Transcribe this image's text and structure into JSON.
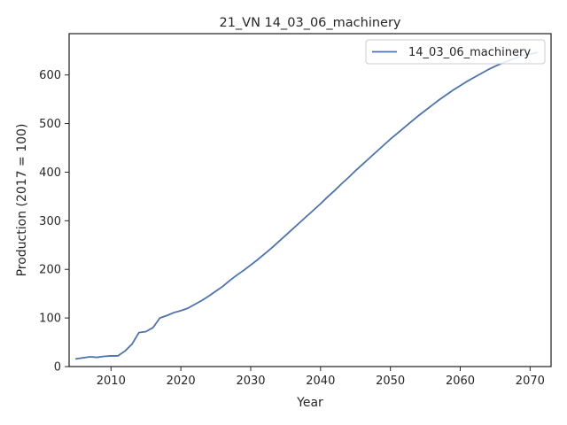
{
  "chart_data": {
    "type": "line",
    "title": "21_VN 14_03_06_machinery",
    "xlabel": "Year",
    "ylabel": "Production (2017 = 100)",
    "xlim": [
      2004,
      2073
    ],
    "ylim": [
      0,
      685
    ],
    "xticks": [
      2010,
      2020,
      2030,
      2040,
      2050,
      2060,
      2070
    ],
    "yticks": [
      0,
      100,
      200,
      300,
      400,
      500,
      600
    ],
    "grid": false,
    "legend": "top-right",
    "series": [
      {
        "name": "14_03_06_machinery",
        "color": "#4c72b0",
        "x": [
          2005,
          2006,
          2007,
          2008,
          2009,
          2010,
          2011,
          2012,
          2013,
          2014,
          2015,
          2016,
          2017,
          2018,
          2019,
          2020,
          2021,
          2022,
          2023,
          2024,
          2025,
          2026,
          2027,
          2028,
          2029,
          2030,
          2031,
          2032,
          2033,
          2034,
          2035,
          2036,
          2037,
          2038,
          2039,
          2040,
          2041,
          2042,
          2043,
          2044,
          2045,
          2046,
          2047,
          2048,
          2049,
          2050,
          2051,
          2052,
          2053,
          2054,
          2055,
          2056,
          2057,
          2058,
          2059,
          2060,
          2061,
          2062,
          2063,
          2064,
          2065,
          2066,
          2067,
          2068,
          2069,
          2070,
          2071
        ],
        "y": [
          16,
          18,
          20,
          19,
          21,
          22,
          22,
          32,
          46,
          70,
          72,
          80,
          100,
          105,
          111,
          115,
          120,
          128,
          136,
          145,
          155,
          165,
          177,
          188,
          198,
          209,
          220,
          232,
          244,
          257,
          270,
          283,
          296,
          309,
          322,
          335,
          349,
          362,
          376,
          389,
          403,
          416,
          429,
          442,
          455,
          468,
          480,
          492,
          504,
          516,
          527,
          538,
          549,
          559,
          569,
          578,
          587,
          595,
          603,
          611,
          618,
          624,
          630,
          635,
          640,
          643,
          646
        ]
      }
    ]
  }
}
